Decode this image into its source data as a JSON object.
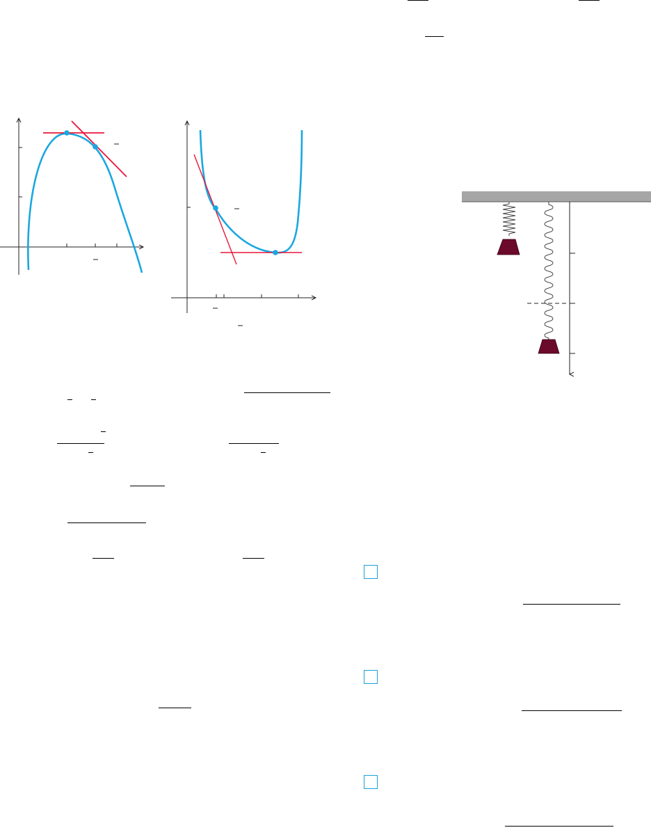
{
  "colors": {
    "curve": "#1aa7e0",
    "tangent": "#e8163a",
    "axis": "#231f20",
    "ceiling": "#a6a6a6",
    "weight": "#6b0a2b",
    "checkbox": "#1aa0db"
  },
  "left_graph": {
    "points": [
      "maximum",
      "tangency"
    ],
    "icons": [
      "parabola-curve",
      "horizontal-tangent",
      "sloped-tangent"
    ]
  },
  "middle_graph": {
    "points": [
      "tangency",
      "minimum"
    ],
    "icons": [
      "u-curve",
      "horizontal-tangent",
      "sloped-tangent"
    ]
  },
  "spring_figure": {
    "icons": [
      "ceiling",
      "compressed-spring",
      "stretched-spring",
      "weight",
      "displacement-axis",
      "equilibrium-dashed-line"
    ]
  },
  "exercises": {
    "checkbox_icons": [
      "checkbox-icon-1",
      "checkbox-icon-2",
      "checkbox-icon-3"
    ]
  }
}
